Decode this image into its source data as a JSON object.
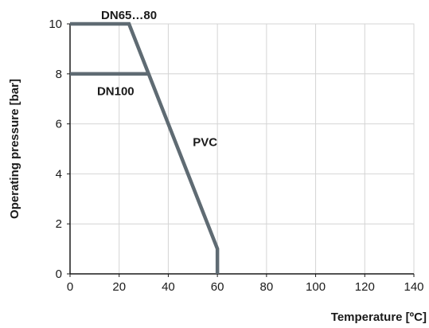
{
  "chart_data": {
    "type": "line",
    "xlabel": "Temperature [ºC]",
    "ylabel": "Operating pressure [bar]",
    "xlim": [
      0,
      140
    ],
    "ylim": [
      0,
      10
    ],
    "x_ticks": [
      0,
      20,
      40,
      60,
      80,
      100,
      120,
      140
    ],
    "y_ticks": [
      0,
      2,
      4,
      6,
      8,
      10
    ],
    "x_tick_labels": [
      "0",
      "20",
      "40",
      "60",
      "80",
      "100",
      "120",
      "140"
    ],
    "y_tick_labels": [
      "0",
      "2",
      "4",
      "6",
      "8",
      "10"
    ],
    "grid": true,
    "series_color": "#5f6b73",
    "series": [
      {
        "points": [
          [
            0,
            10
          ],
          [
            24,
            10
          ],
          [
            60,
            1
          ],
          [
            60,
            0
          ]
        ]
      },
      {
        "points": [
          [
            0,
            8
          ],
          [
            32,
            8
          ]
        ]
      }
    ],
    "annotations": [
      {
        "text": "DN65…80",
        "x": 24,
        "y": 10
      },
      {
        "text": "DN100",
        "x": 11,
        "y": 7.6
      },
      {
        "text": "PVC",
        "x": 50,
        "y": 5.3
      }
    ]
  }
}
